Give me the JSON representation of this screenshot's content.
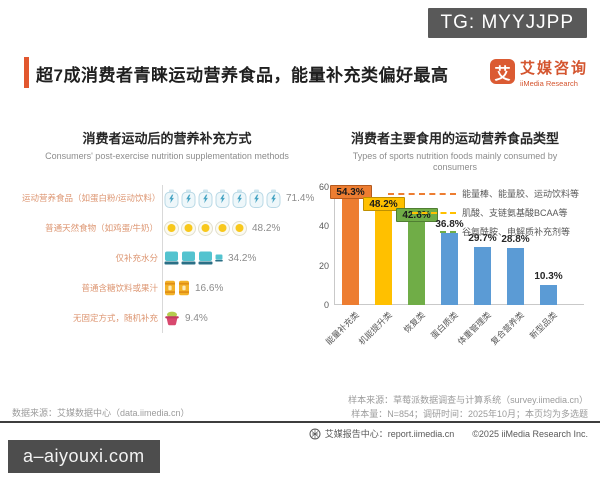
{
  "watermarks": {
    "tg_badge": "TG: MYYJJPP",
    "site_badge": "a–aiyouxi.com"
  },
  "header": {
    "title": "超7成消费者青睐运动营养食品，能量补充类偏好最高",
    "accent_color": "#e2572e",
    "logo": {
      "symbol": "艾",
      "name_cn": "艾媒咨询",
      "name_en": "iiMedia Research"
    }
  },
  "chart_data": [
    {
      "type": "pictogram-bar",
      "title": "消费者运动后的营养补充方式",
      "subtitle": "Consumers' post-exercise nutrition supplementation methods",
      "categories": [
        "运动营养食品（如蛋白粉/运动饮料）",
        "普通天然食物（如鸡蛋/牛奶）",
        "仅补充水分",
        "普通含糖饮料或果汁",
        "无固定方式，随机补充"
      ],
      "values": [
        71.4,
        48.2,
        34.2,
        16.6,
        9.4
      ],
      "value_labels": [
        "71.4%",
        "48.2%",
        "34.2%",
        "16.6%",
        "9.4%"
      ],
      "icons": [
        "energy-bottle-icon",
        "fried-egg-icon",
        "water-cup-icon",
        "sugary-drink-can-icon",
        "random-pot-icon"
      ],
      "icon_counts": [
        7,
        5,
        3.5,
        2,
        1
      ]
    },
    {
      "type": "bar",
      "title": "消费者主要食用的运动营养食品类型",
      "subtitle": "Types of sports nutrition foods mainly consumed by consumers",
      "categories": [
        "能量补充类",
        "机能提升类",
        "恢复类",
        "蛋白质类",
        "体重管理类",
        "复合营养类",
        "新型品类"
      ],
      "values": [
        54.3,
        48.2,
        42.6,
        36.8,
        29.7,
        28.8,
        10.3
      ],
      "value_labels": [
        "54.3%",
        "48.2%",
        "42.6%",
        "36.8%",
        "29.7%",
        "28.8%",
        "10.3%"
      ],
      "boxed_labels": [
        true,
        true,
        true,
        false,
        false,
        false,
        false
      ],
      "bar_colors": [
        "#ED7D31",
        "#FFC000",
        "#70AD47",
        "#5B9BD5",
        "#5B9BD5",
        "#5B9BD5",
        "#5B9BD5"
      ],
      "chip_borders": [
        "#B45A1F",
        "#BF9000",
        "#507E32",
        ""
      ],
      "yticks": [
        0,
        20,
        40,
        60
      ],
      "ylim": [
        0,
        60
      ],
      "grid": false,
      "legend_position": "top-right",
      "legend": [
        {
          "label": "能量棒、能量胶、运动饮料等",
          "color": "#ED7D31"
        },
        {
          "label": "肌酸、支链氨基酸BCAA等",
          "color": "#FFC000"
        },
        {
          "label": "谷氨酰胺、电解质补充剂等",
          "color": "#70AD47"
        }
      ]
    }
  ],
  "footer": {
    "left_source": "数据来源：艾媒数据中心（data.iimedia.cn）",
    "sample_source": "样本来源：草莓派数据调查与计算系统（survey.iimedia.cn）",
    "sample_info": "样本量：N=854；调研时间：2025年10月；本页均为多选题",
    "report_center": "艾媒报告中心：report.iimedia.cn",
    "copyright": "©2025  iiMedia Research  Inc."
  }
}
